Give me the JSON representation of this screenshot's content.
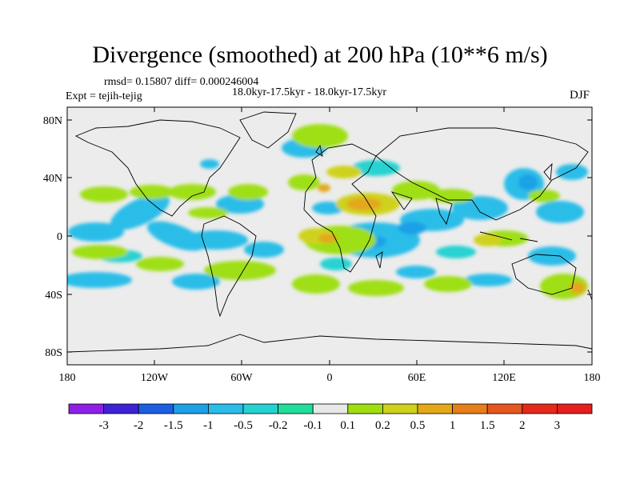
{
  "title": "Divergence (smoothed) at 200 hPa (10**6 m/s)",
  "stats": "rmsd= 0.15807 diff= 0.000246004",
  "period": "18.0kyr-17.5kyr - 18.0kyr-17.5kyr",
  "experiment": "Expt = tejih-tejig",
  "season": "DJF",
  "lat_labels": [
    "80N",
    "40N",
    "0",
    "40S",
    "80S"
  ],
  "lon_labels": [
    "180",
    "120W",
    "60W",
    "0",
    "60E",
    "120E",
    "180"
  ],
  "colorbar": {
    "labels": [
      "-3",
      "-2",
      "-1.5",
      "-1",
      "-0.5",
      "-0.2",
      "-0.1",
      "0.1",
      "0.2",
      "0.5",
      "1",
      "1.5",
      "2",
      "3"
    ],
    "colors": [
      "#8f1fe6",
      "#3d22d6",
      "#1c5ee0",
      "#1ea0e6",
      "#29bde8",
      "#25d2d2",
      "#22dd99",
      "#e8e8e8",
      "#9fdf12",
      "#cfd21b",
      "#e3a81a",
      "#e67e1c",
      "#e5571e",
      "#e52a1a",
      "#e61e1e"
    ]
  },
  "map_colors": {
    "ocean_bg": "#ececec",
    "coast": "#000000"
  }
}
